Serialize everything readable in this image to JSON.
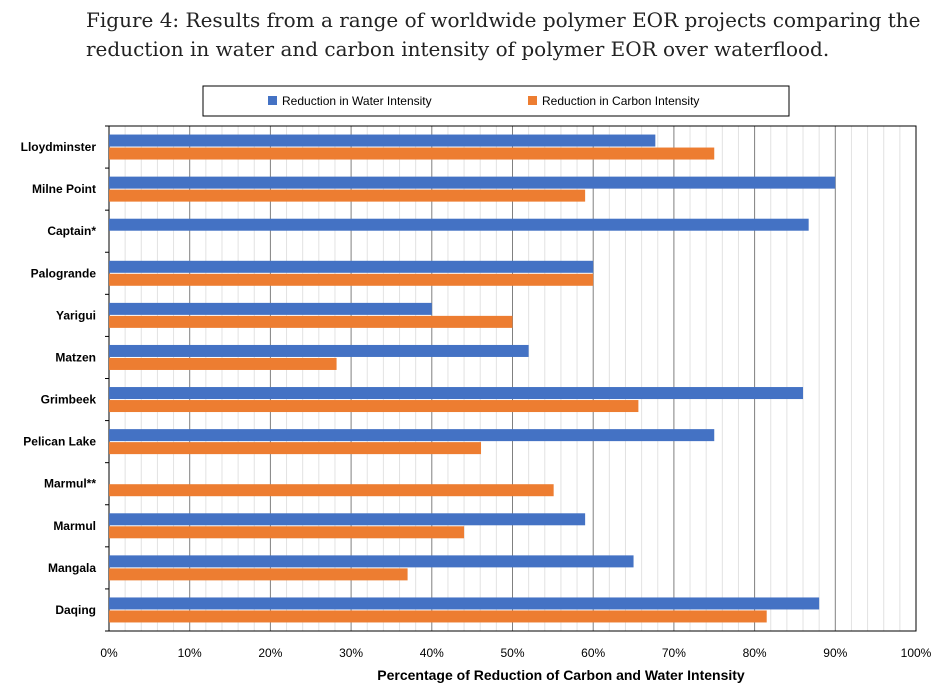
{
  "caption": "Figure 4: Results from a range of worldwide polymer EOR projects comparing the reduction in water and carbon intensity of polymer EOR over waterflood.",
  "chart_data": {
    "type": "bar",
    "orientation": "horizontal",
    "categories": [
      "Lloydminster",
      "Milne Point",
      "Captain*",
      "Palogrande",
      "Yarigui",
      "Matzen",
      "Grimbeek",
      "Pelican Lake",
      "Marmul**",
      "Marmul",
      "Mangala",
      "Daqing"
    ],
    "series": [
      {
        "name": "Reduction in Water Intensity",
        "color": "#4472C4",
        "values": [
          0.677,
          0.9,
          0.867,
          0.6,
          0.4,
          0.52,
          0.86,
          0.75,
          null,
          0.59,
          0.65,
          0.88
        ]
      },
      {
        "name": "Reduction in Carbon Intensity",
        "color": "#ED7D31",
        "values": [
          0.75,
          0.59,
          null,
          0.6,
          0.5,
          0.282,
          0.656,
          0.461,
          0.551,
          0.44,
          0.37,
          0.815
        ]
      }
    ],
    "xlabel": "Percentage of Reduction of Carbon and Water Intensity",
    "ylabel": "",
    "xlim": [
      0,
      1
    ],
    "x_ticks": [
      "0%",
      "10%",
      "20%",
      "30%",
      "40%",
      "50%",
      "60%",
      "70%",
      "80%",
      "90%",
      "100%"
    ],
    "grid": "vertical major and minor",
    "legend": "top"
  }
}
